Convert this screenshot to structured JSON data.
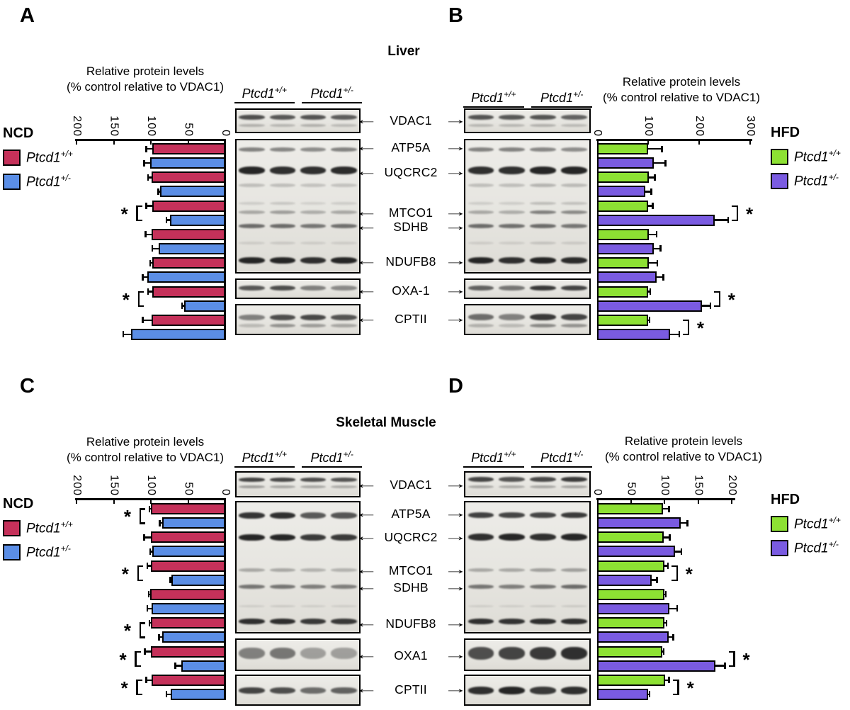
{
  "panels": [
    {
      "letter": "A"
    },
    {
      "letter": "B"
    },
    {
      "letter": "C"
    },
    {
      "letter": "D"
    }
  ],
  "sections": [
    {
      "title": "Liver"
    },
    {
      "title": "Skeletal Muscle"
    }
  ],
  "icons": {
    "left_arrow": "←",
    "right_arrow": "→",
    "significance": "*"
  },
  "legends": {
    "ncd": {
      "condition": "NCD",
      "entries": [
        {
          "genotype": "Ptcd1",
          "sup": "+/+",
          "color": "#C5315A"
        },
        {
          "genotype": "Ptcd1",
          "sup": "+/-",
          "color": "#5B8EE6"
        }
      ]
    },
    "hfd": {
      "condition": "HFD",
      "entries": [
        {
          "genotype": "Ptcd1",
          "sup": "+/+",
          "color": "#8DE133"
        },
        {
          "genotype": "Ptcd1",
          "sup": "+/-",
          "color": "#7A5BE1"
        }
      ]
    }
  },
  "blot_header": [
    {
      "genotype": "Ptcd1",
      "sup": "+/+"
    },
    {
      "genotype": "Ptcd1",
      "sup": "+/-"
    }
  ],
  "protein_labels": {
    "liver": [
      "VDAC1",
      "ATP5A",
      "UQCRC2",
      "MTCO1",
      "SDHB",
      "NDUFB8",
      "OXA-1",
      "CPTII"
    ],
    "muscle": [
      "VDAC1",
      "ATP5A",
      "UQCRC2",
      "MTCO1",
      "SDHB",
      "NDUFB8",
      "OXA1",
      "CPTII"
    ]
  },
  "chart_data": [
    {
      "id": "A",
      "tissue": "Liver",
      "condition": "NCD",
      "type": "bar",
      "orientation": "horizontal",
      "direction": "right-to-left",
      "title_line1": "Relative protein levels",
      "title_line2": "(% control relative to VDAC1)",
      "ticks": [
        200,
        150,
        100,
        50,
        0
      ],
      "xlim": [
        0,
        200
      ],
      "categories": [
        "ATP5A",
        "UQCRC2",
        "MTCO1",
        "SDHB",
        "NDUFB8",
        "OXA-1",
        "CPTII"
      ],
      "series": [
        {
          "name": "Ptcd1+/+",
          "color": "#C5315A",
          "values": [
            98,
            99,
            98,
            99,
            98,
            98,
            99
          ],
          "errors": [
            8,
            5,
            8,
            8,
            3,
            6,
            12
          ]
        },
        {
          "name": "Ptcd1+/-",
          "color": "#5B8EE6",
          "values": [
            101,
            88,
            74,
            90,
            105,
            55,
            127
          ],
          "errors": [
            8,
            2,
            5,
            8,
            6,
            3,
            10
          ]
        }
      ],
      "significant": [
        false,
        false,
        true,
        false,
        false,
        true,
        false
      ]
    },
    {
      "id": "B",
      "tissue": "Liver",
      "condition": "HFD",
      "type": "bar",
      "orientation": "horizontal",
      "direction": "left-to-right",
      "title_line1": "Relative protein levels",
      "title_line2": "(% control relative to VDAC1)",
      "ticks": [
        0,
        100,
        200,
        300
      ],
      "xlim": [
        0,
        300
      ],
      "categories": [
        "ATP5A",
        "UQCRC2",
        "MTCO1",
        "SDHB",
        "NDUFB8",
        "OXA-1",
        "CPTII"
      ],
      "series": [
        {
          "name": "Ptcd1+/+",
          "color": "#8DE133",
          "values": [
            100,
            101,
            100,
            101,
            101,
            100,
            100
          ],
          "errors": [
            27,
            12,
            9,
            16,
            17,
            4,
            3
          ]
        },
        {
          "name": "Ptcd1+/-",
          "color": "#7A5BE1",
          "values": [
            111,
            94,
            231,
            111,
            117,
            206,
            143
          ],
          "errors": [
            23,
            12,
            26,
            13,
            13,
            16,
            18
          ]
        }
      ],
      "significant": [
        false,
        false,
        true,
        false,
        false,
        true,
        true
      ]
    },
    {
      "id": "C",
      "tissue": "Skeletal Muscle",
      "condition": "NCD",
      "type": "bar",
      "orientation": "horizontal",
      "direction": "right-to-left",
      "title_line1": "Relative protein levels",
      "title_line2": "(% control relative to VDAC1)",
      "ticks": [
        200,
        150,
        100,
        50,
        0
      ],
      "xlim": [
        0,
        200
      ],
      "categories": [
        "ATP5A",
        "UQCRC2",
        "MTCO1",
        "SDHB",
        "NDUFB8",
        "OXA1",
        "CPTII"
      ],
      "series": [
        {
          "name": "Ptcd1+/+",
          "color": "#C5315A",
          "values": [
            100,
            100,
            100,
            101,
            100,
            100,
            99
          ],
          "errors": [
            2,
            9,
            5,
            2,
            2,
            8,
            7
          ]
        },
        {
          "name": "Ptcd1+/-",
          "color": "#5B8EE6",
          "values": [
            85,
            98,
            72,
            99,
            85,
            59,
            73
          ],
          "errors": [
            3,
            3,
            2,
            6,
            4,
            8,
            6
          ]
        }
      ],
      "significant": [
        true,
        false,
        true,
        false,
        true,
        true,
        true
      ]
    },
    {
      "id": "D",
      "tissue": "Skeletal Muscle",
      "condition": "HFD",
      "type": "bar",
      "orientation": "horizontal",
      "direction": "left-to-right",
      "title_line1": "Relative protein levels",
      "title_line2": "(% control relative to VDAC1)",
      "ticks": [
        0,
        50,
        100,
        150,
        200
      ],
      "xlim": [
        0,
        200
      ],
      "categories": [
        "ATP5A",
        "UQCRC2",
        "MTCO1",
        "SDHB",
        "NDUFB8",
        "OXA1",
        "CPTII"
      ],
      "series": [
        {
          "name": "Ptcd1+/+",
          "color": "#8DE133",
          "values": [
            98,
            99,
            100,
            100,
            100,
            97,
            101
          ],
          "errors": [
            9,
            9,
            5,
            2,
            3,
            2,
            6
          ]
        },
        {
          "name": "Ptcd1+/-",
          "color": "#7A5BE1",
          "values": [
            124,
            116,
            81,
            107,
            106,
            176,
            76
          ],
          "errors": [
            10,
            9,
            8,
            12,
            7,
            14,
            2
          ]
        }
      ],
      "significant": [
        false,
        false,
        true,
        false,
        false,
        true,
        true
      ]
    }
  ]
}
